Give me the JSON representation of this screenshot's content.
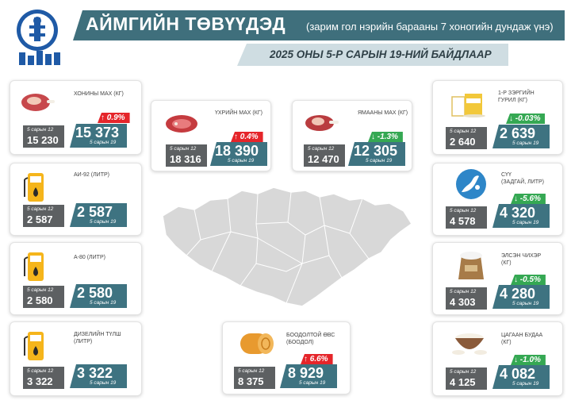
{
  "header": {
    "title": "АЙМГИЙН ТӨВҮҮДЭД",
    "subtitle": "(зарим гол нэрийн барааны 7 хоногийн дундаж үнэ)",
    "date_line": "2025 ОНЫ 5-Р САРЫН 19-НИЙ БАЙДЛААР"
  },
  "colors": {
    "accent": "#3e7381",
    "old_box": "#5d6062",
    "up": "#e5252a",
    "down": "#35a853"
  },
  "cards": {
    "mutton": {
      "label": "ХОНИНЫ МАХ (КГ)",
      "old_caption": "5 сарын 12",
      "old_value": "15 230",
      "new_value": "15 373",
      "new_caption": "5 сарын 19",
      "change": "↑ 0.9%"
    },
    "beef": {
      "label": "ҮХРИЙН МАХ (КГ)",
      "old_caption": "5 сарын 12",
      "old_value": "18 316",
      "new_value": "18 390",
      "new_caption": "5 сарын 19",
      "change": "↑ 0.4%"
    },
    "goat": {
      "label": "ЯМААНЫ МАХ (КГ)",
      "old_caption": "5 сарын 12",
      "old_value": "12 470",
      "new_value": "12 305",
      "new_caption": "5 сарын 19",
      "change": "↓ -1.3%"
    },
    "flour": {
      "label": "1-Р ЗЭРГИЙН\nГУРИЛ (КГ)",
      "old_caption": "5 сарын 12",
      "old_value": "2 640",
      "new_value": "2 639",
      "new_caption": "5 сарын 19",
      "change": "↓ -0.03%"
    },
    "ai92": {
      "label": "АИ-92 (ЛИТР)",
      "old_caption": "5 сарын 12",
      "old_value": "2 587",
      "new_value": "2 587",
      "new_caption": "5 сарын 19"
    },
    "milk": {
      "label": "СҮҮ\n(ЗАДГАЙ, ЛИТР)",
      "old_caption": "5 сарын 12",
      "old_value": "4 578",
      "new_value": "4 320",
      "new_caption": "5 сарын 19",
      "change": "↓ -5.6%"
    },
    "a80": {
      "label": "А-80 (ЛИТР)",
      "old_caption": "5 сарын 12",
      "old_value": "2 580",
      "new_value": "2 580",
      "new_caption": "5 сарын 19"
    },
    "sugar": {
      "label": "ЭЛСЭН ЧИХЭР\n(КГ)",
      "old_caption": "5 сарын 12",
      "old_value": "4 303",
      "new_value": "4 280",
      "new_caption": "5 сарын 19",
      "change": "↓ -0.5%"
    },
    "diesel": {
      "label": "ДИЗЕЛИЙН ТҮЛШ\n(ЛИТР)",
      "old_caption": "5 сарын 12",
      "old_value": "3 322",
      "new_value": "3 322",
      "new_caption": "5 сарын 19"
    },
    "rice_husk": {
      "label": "БООДОЛТОЙ ӨВС\n(БООДОЛ)",
      "old_caption": "5 сарын 12",
      "old_value": "8 375",
      "new_value": "8 929",
      "new_caption": "5 сарын 19",
      "change": "↑ 6.6%"
    },
    "rice": {
      "label": "ЦАГААН БУДАА\n(КГ)",
      "old_caption": "5 сарын 12",
      "old_value": "4 125",
      "new_value": "4 082",
      "new_caption": "5 сарын 19",
      "change": "↓ -1.0%"
    }
  },
  "icons": [
    "state-emblem-icon",
    "mutton-icon",
    "beef-icon",
    "goat-meat-icon",
    "flour-icon",
    "fuel-pump-icon",
    "milk-icon",
    "sugar-sack-icon",
    "hay-bale-icon",
    "rice-bowl-icon",
    "mongolia-map"
  ]
}
